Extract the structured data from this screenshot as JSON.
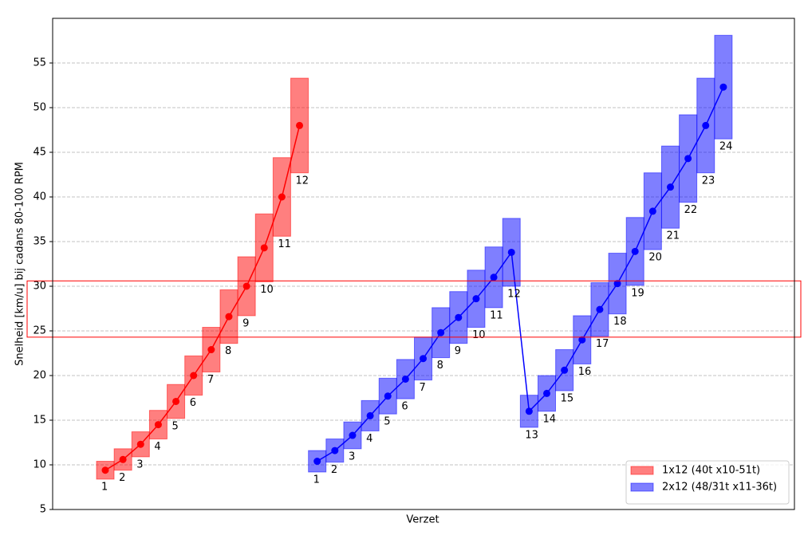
{
  "chart_data": {
    "type": "range-line",
    "x_label": "Verzet",
    "y_label": "Snelheid [km/u] bij cadans 80-100 RPM",
    "ylim": [
      5,
      60
    ],
    "yticks": [
      5,
      10,
      15,
      20,
      25,
      30,
      35,
      40,
      45,
      50,
      55
    ],
    "grid": true,
    "legend_position": "lower right",
    "highlight_band": {
      "ylim": [
        24.3,
        30.6
      ],
      "color": "#ff0000"
    },
    "series": [
      {
        "name": "1x12 (40t x10-51t)",
        "color": "#ff0000",
        "labels": [
          1,
          2,
          3,
          4,
          5,
          6,
          7,
          8,
          9,
          10,
          11,
          12
        ],
        "values": [
          9.4,
          10.6,
          12.3,
          14.5,
          17.1,
          20.0,
          22.9,
          26.6,
          30.0,
          34.3,
          40.0,
          48.0
        ],
        "low": [
          8.4,
          9.4,
          10.9,
          12.9,
          15.2,
          17.8,
          20.4,
          23.6,
          26.7,
          30.5,
          35.6,
          42.7
        ],
        "high": [
          10.4,
          11.8,
          13.7,
          16.1,
          19.0,
          22.2,
          25.4,
          29.6,
          33.3,
          38.1,
          44.4,
          53.3
        ]
      },
      {
        "name": "2x12 (48/31t x11-36t)",
        "color": "#0000ff",
        "labels": [
          1,
          2,
          3,
          4,
          5,
          6,
          7,
          8,
          9,
          10,
          11,
          12,
          13,
          14,
          15,
          16,
          17,
          18,
          19,
          20,
          21,
          22,
          23,
          24
        ],
        "values": [
          10.4,
          11.6,
          13.3,
          15.5,
          17.7,
          19.6,
          21.9,
          24.8,
          26.5,
          28.6,
          31.0,
          33.8,
          16.0,
          18.0,
          20.6,
          24.0,
          27.4,
          30.3,
          33.9,
          38.4,
          41.1,
          44.3,
          48.0,
          52.3
        ],
        "low": [
          9.2,
          10.3,
          11.8,
          13.8,
          15.7,
          17.4,
          19.5,
          22.0,
          23.6,
          25.4,
          27.6,
          30.0,
          14.2,
          16.0,
          18.3,
          21.3,
          24.4,
          26.9,
          30.1,
          34.1,
          36.5,
          39.4,
          42.7,
          46.5
        ],
        "high": [
          11.6,
          12.9,
          14.8,
          17.2,
          19.7,
          21.8,
          24.3,
          27.6,
          29.4,
          31.8,
          34.4,
          37.6,
          17.8,
          20.0,
          22.9,
          26.7,
          30.4,
          33.7,
          37.7,
          42.7,
          45.7,
          49.2,
          53.3,
          58.1
        ]
      }
    ]
  }
}
